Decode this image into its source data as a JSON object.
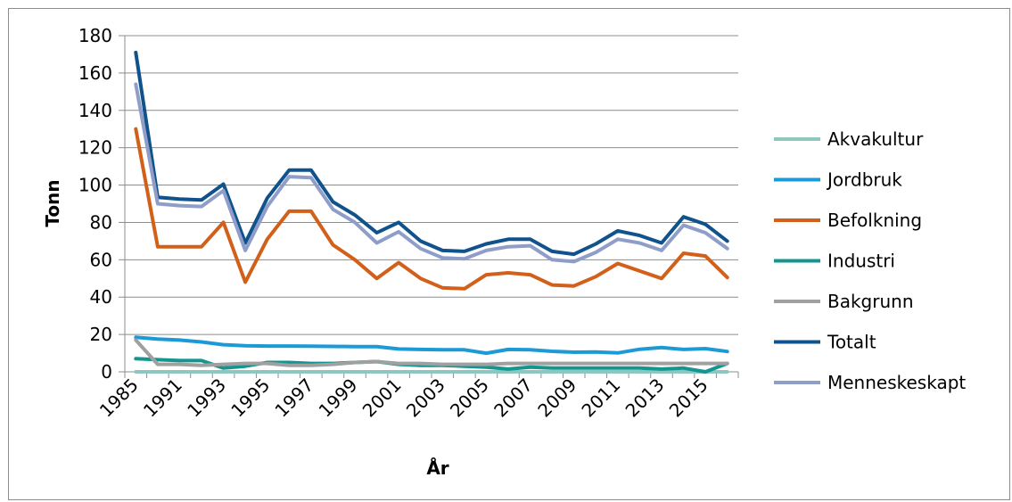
{
  "chart_data": {
    "type": "line",
    "title": "",
    "xlabel": "År",
    "ylabel": "Tonn",
    "ylim": [
      0,
      180
    ],
    "yticks": [
      "0",
      "20",
      "40",
      "60",
      "80",
      "100",
      "120",
      "140",
      "160",
      "180"
    ],
    "x": [
      1985,
      1990,
      1991,
      1992,
      1993,
      1994,
      1995,
      1996,
      1997,
      1998,
      1999,
      2000,
      2001,
      2002,
      2003,
      2004,
      2005,
      2006,
      2007,
      2008,
      2009,
      2010,
      2011,
      2012,
      2013,
      2014,
      2015,
      2016
    ],
    "xtick_labels": [
      "1985",
      "1991",
      "1993",
      "1995",
      "1997",
      "1999",
      "2001",
      "2003",
      "2005",
      "2007",
      "2009",
      "2011",
      "2013",
      "2015"
    ],
    "grid": "horizontal",
    "legend_position": "right",
    "series": [
      {
        "name": "Akvakultur",
        "color": "#8fc7c0",
        "values": [
          0,
          0,
          0,
          0,
          0,
          0,
          0,
          0,
          0,
          0,
          0,
          0,
          0,
          0,
          0,
          0,
          0,
          0,
          0,
          0,
          0,
          0,
          0,
          0,
          0,
          0,
          0,
          0
        ]
      },
      {
        "name": "Jordbruk",
        "color": "#1b9ad6",
        "values": [
          18.5,
          17.5,
          17,
          16,
          14.5,
          14,
          13.8,
          13.8,
          13.7,
          13.6,
          13.5,
          13.5,
          12.2,
          12,
          11.8,
          11.8,
          10,
          12,
          11.8,
          11,
          10.5,
          10.6,
          10.1,
          12.1,
          13,
          12,
          12.4,
          10.9
        ]
      },
      {
        "name": "Befolkning",
        "color": "#d2601a",
        "values": [
          130,
          67,
          67,
          67,
          80,
          48,
          71,
          86,
          86,
          68,
          60,
          50,
          58.5,
          50,
          45,
          44.5,
          52,
          53,
          52,
          46.5,
          46,
          51,
          58,
          54,
          50,
          63.5,
          62,
          50.5
        ]
      },
      {
        "name": "Industri",
        "color": "#14958f",
        "values": [
          7,
          6.5,
          6,
          6,
          2,
          3,
          5,
          5,
          4.5,
          4.5,
          5,
          5.5,
          4,
          3.5,
          3.5,
          3,
          2.5,
          1.5,
          2.5,
          2,
          2,
          2,
          2,
          2,
          1.5,
          2,
          0,
          4.5
        ]
      },
      {
        "name": "Bakgrunn",
        "color": "#a0a0a0",
        "values": [
          17,
          4,
          4,
          3.5,
          4,
          4.5,
          4.5,
          3.5,
          3.5,
          4,
          5,
          5.5,
          4.5,
          4.5,
          4,
          4,
          4,
          4.5,
          4.5,
          4.5,
          4.5,
          4.5,
          4.5,
          4.5,
          4.5,
          4.5,
          4.5,
          4.5
        ]
      },
      {
        "name": "Totalt",
        "color": "#10528c",
        "values": [
          171,
          93.5,
          92.5,
          92,
          100.5,
          69,
          93,
          108,
          108,
          91,
          84,
          74.5,
          80,
          70,
          65,
          64.5,
          68.5,
          71,
          71,
          64.5,
          63,
          68.5,
          75.5,
          73,
          69,
          83,
          79,
          70
        ]
      },
      {
        "name": "Menneskeskapt",
        "color": "#8f9ec9",
        "values": [
          154,
          90,
          89,
          88.5,
          97,
          65,
          88.5,
          104.5,
          104,
          87,
          80,
          69,
          75,
          66,
          61,
          60.5,
          65,
          67,
          67.5,
          60,
          59,
          64,
          71,
          69,
          65,
          78.5,
          74.5,
          66
        ]
      }
    ]
  }
}
